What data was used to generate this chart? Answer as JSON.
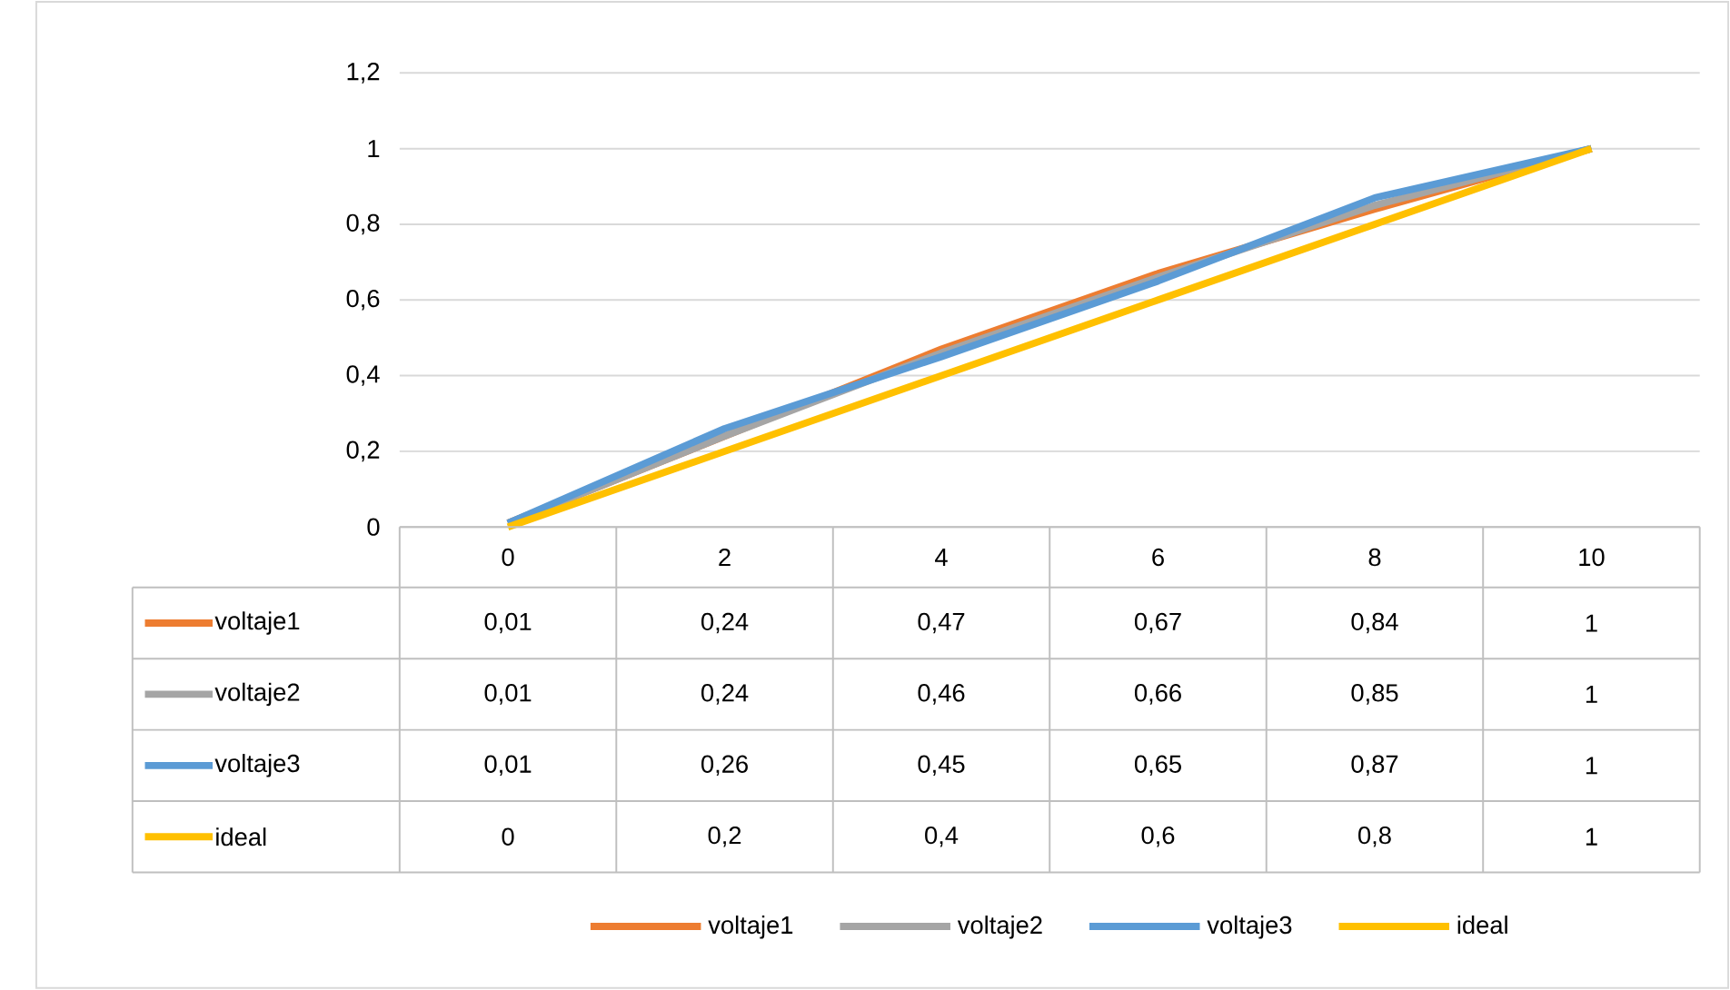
{
  "chart_data": {
    "type": "line",
    "categories": [
      "0",
      "2",
      "4",
      "6",
      "8",
      "10"
    ],
    "series": [
      {
        "name": "voltaje1",
        "color": "#ed7d31",
        "values": [
          0.01,
          0.24,
          0.47,
          0.67,
          0.84,
          1
        ],
        "value_labels": [
          "0,01",
          "0,24",
          "0,47",
          "0,67",
          "0,84",
          "1"
        ]
      },
      {
        "name": "voltaje2",
        "color": "#a5a5a5",
        "values": [
          0.01,
          0.24,
          0.46,
          0.66,
          0.85,
          1
        ],
        "value_labels": [
          "0,01",
          "0,24",
          "0,46",
          "0,66",
          "0,85",
          "1"
        ]
      },
      {
        "name": "voltaje3",
        "color": "#5b9bd5",
        "values": [
          0.01,
          0.26,
          0.45,
          0.65,
          0.87,
          1
        ],
        "value_labels": [
          "0,01",
          "0,26",
          "0,45",
          "0,65",
          "0,87",
          "1"
        ]
      },
      {
        "name": "ideal",
        "color": "#ffc000",
        "values": [
          0,
          0.2,
          0.4,
          0.6,
          0.8,
          1
        ],
        "value_labels": [
          "0",
          "0,2",
          "0,4",
          "0,6",
          "0,8",
          "1"
        ]
      }
    ],
    "ylim": [
      0,
      1.2
    ],
    "yticks": [
      0,
      {
        "value": 0.2,
        "label": "0,2"
      },
      {
        "value": 0.4,
        "label": "0,4"
      },
      {
        "value": 0.6,
        "label": "0,6"
      },
      {
        "value": 0.8,
        "label": "0,8"
      },
      1,
      {
        "value": 1.2,
        "label": "1,2"
      }
    ],
    "grid": "y",
    "legend": "bottom",
    "marker": "none",
    "line_style": "solid"
  }
}
